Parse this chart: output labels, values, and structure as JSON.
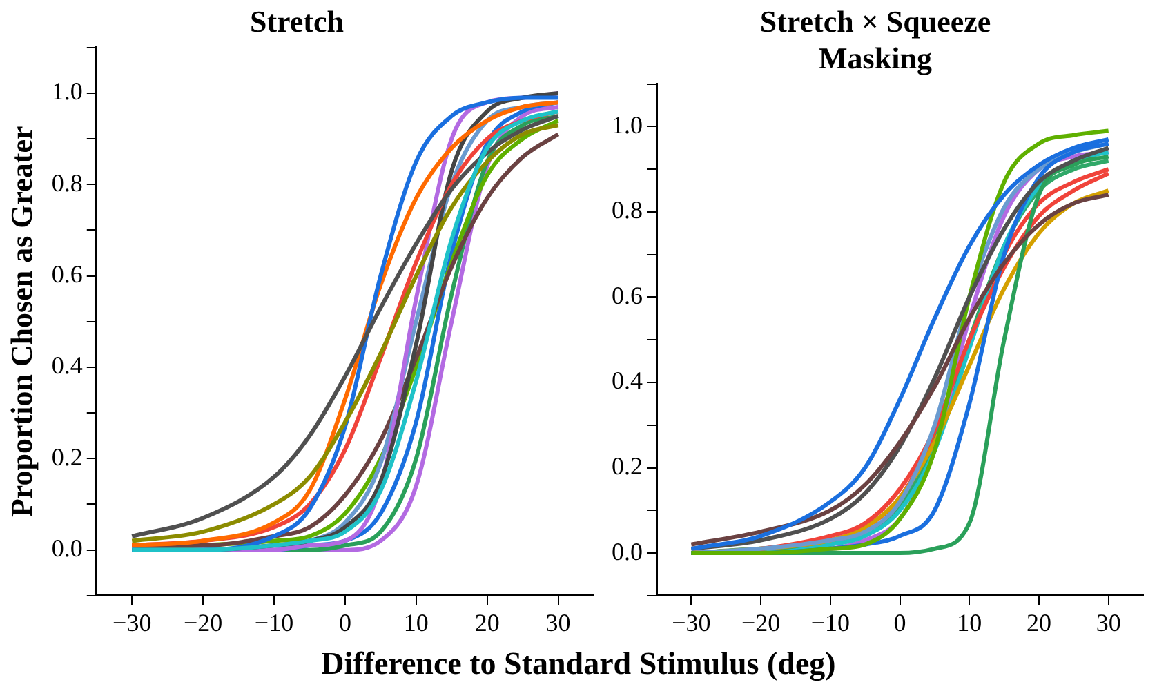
{
  "chart_data": [
    {
      "type": "line",
      "title": "Stretch",
      "xlabel": "Difference to Standard Stimulus (deg)",
      "ylabel": "Proportion Chosen as Greater",
      "x": [
        -30,
        -20,
        -10,
        -5,
        0,
        5,
        10,
        15,
        20,
        25,
        30
      ],
      "xlim": [
        -35,
        35
      ],
      "ylim": [
        -0.1,
        1.1
      ],
      "xticks": [
        {
          "value": -30,
          "label": "−30"
        },
        {
          "value": -20,
          "label": "−20"
        },
        {
          "value": -10,
          "label": "−10"
        },
        0,
        10,
        20,
        30
      ],
      "yticks": [
        {
          "value": -0.1,
          "label": null
        },
        {
          "value": 0,
          "label": "0.0"
        },
        {
          "value": 0.1,
          "label": null
        },
        {
          "value": 0.2,
          "label": "0.2"
        },
        {
          "value": 0.3,
          "label": null
        },
        {
          "value": 0.4,
          "label": "0.4"
        },
        {
          "value": 0.5,
          "label": null
        },
        {
          "value": 0.6,
          "label": "0.6"
        },
        {
          "value": 0.7,
          "label": null
        },
        {
          "value": 0.8,
          "label": "0.8"
        },
        {
          "value": 0.9,
          "label": null
        },
        {
          "value": 1.0,
          "label": "1.0"
        },
        {
          "value": 1.1,
          "label": null
        }
      ],
      "grid": false,
      "legend": false,
      "marker": "none",
      "line_style": "solid",
      "series": [
        {
          "color": "#1fc2c8",
          "values": [
            0,
            0,
            0.01,
            0.02,
            0.04,
            0.13,
            0.37,
            0.68,
            0.88,
            0.94,
            0.96
          ]
        },
        {
          "color": "#505050",
          "values": [
            0.03,
            0.07,
            0.16,
            0.25,
            0.38,
            0.53,
            0.67,
            0.79,
            0.87,
            0.92,
            0.95
          ]
        },
        {
          "color": "#8c8c00",
          "values": [
            0.02,
            0.04,
            0.1,
            0.16,
            0.28,
            0.43,
            0.6,
            0.75,
            0.85,
            0.91,
            0.93
          ]
        },
        {
          "color": "#1a6fdf",
          "values": [
            0,
            0,
            0.03,
            0.09,
            0.27,
            0.6,
            0.85,
            0.95,
            0.98,
            0.99,
            0.99
          ]
        },
        {
          "color": "#ff6a00",
          "values": [
            0.01,
            0.02,
            0.06,
            0.13,
            0.33,
            0.58,
            0.77,
            0.88,
            0.94,
            0.97,
            0.98
          ]
        },
        {
          "color": "#f0433a",
          "values": [
            0.01,
            0.02,
            0.05,
            0.1,
            0.22,
            0.42,
            0.63,
            0.8,
            0.9,
            0.94,
            0.96
          ]
        },
        {
          "color": "#454545",
          "values": [
            0,
            0,
            0.01,
            0.02,
            0.05,
            0.15,
            0.45,
            0.83,
            0.96,
            0.99,
            1.0
          ]
        },
        {
          "color": "#b36ae2",
          "values": [
            0,
            0,
            0,
            0.01,
            0.02,
            0.14,
            0.55,
            0.9,
            0.98,
            0.99,
            1.0
          ]
        },
        {
          "color": "#6a9bd0",
          "values": [
            0,
            0,
            0.01,
            0.02,
            0.06,
            0.19,
            0.5,
            0.8,
            0.94,
            0.97,
            0.98
          ]
        },
        {
          "color": "#6b4242",
          "values": [
            0.01,
            0.01,
            0.03,
            0.05,
            0.12,
            0.24,
            0.42,
            0.62,
            0.77,
            0.86,
            0.91
          ]
        },
        {
          "color": "#5fb000",
          "values": [
            0,
            0.01,
            0.02,
            0.03,
            0.08,
            0.2,
            0.4,
            0.63,
            0.82,
            0.9,
            0.94
          ]
        },
        {
          "color": "#1a6fdf",
          "values": [
            0,
            0,
            0,
            0.01,
            0.02,
            0.08,
            0.28,
            0.65,
            0.89,
            0.96,
            0.98
          ]
        },
        {
          "color": "#2aa05a",
          "values": [
            0,
            0,
            0,
            0,
            0.01,
            0.04,
            0.2,
            0.56,
            0.85,
            0.93,
            0.95
          ]
        },
        {
          "color": "#b36ae2",
          "values": [
            0,
            0,
            0,
            0,
            0,
            0.02,
            0.14,
            0.5,
            0.84,
            0.95,
            0.97
          ]
        }
      ]
    },
    {
      "type": "line",
      "title": "Stretch × Squeeze Masking",
      "x": [
        -30,
        -20,
        -10,
        -5,
        0,
        5,
        10,
        15,
        20,
        25,
        30
      ],
      "xlim": [
        -35,
        35
      ],
      "ylim": [
        -0.1,
        1.1
      ],
      "xticks": [
        {
          "value": -30,
          "label": "−30"
        },
        {
          "value": -20,
          "label": "−20"
        },
        {
          "value": -10,
          "label": "−10"
        },
        0,
        10,
        20,
        30
      ],
      "yticks": [
        {
          "value": -0.1,
          "label": null
        },
        {
          "value": 0,
          "label": "0.0"
        },
        {
          "value": 0.1,
          "label": null
        },
        {
          "value": 0.2,
          "label": "0.2"
        },
        {
          "value": 0.3,
          "label": null
        },
        {
          "value": 0.4,
          "label": "0.4"
        },
        {
          "value": 0.5,
          "label": null
        },
        {
          "value": 0.6,
          "label": "0.6"
        },
        {
          "value": 0.7,
          "label": null
        },
        {
          "value": 0.8,
          "label": "0.8"
        },
        {
          "value": 0.9,
          "label": null
        },
        {
          "value": 1.0,
          "label": "1.0"
        },
        {
          "value": 1.1,
          "label": null
        }
      ],
      "grid": false,
      "legend": false,
      "marker": "none",
      "line_style": "solid",
      "series": [
        {
          "color": "#1a6fdf",
          "values": [
            0.01,
            0.04,
            0.12,
            0.2,
            0.36,
            0.55,
            0.72,
            0.84,
            0.91,
            0.95,
            0.97
          ]
        },
        {
          "color": "#6b4242",
          "values": [
            0.02,
            0.05,
            0.1,
            0.16,
            0.26,
            0.39,
            0.55,
            0.68,
            0.77,
            0.82,
            0.84
          ]
        },
        {
          "color": "#505050",
          "values": [
            0.01,
            0.03,
            0.08,
            0.14,
            0.25,
            0.41,
            0.6,
            0.76,
            0.87,
            0.92,
            0.95
          ]
        },
        {
          "color": "#5fb000",
          "values": [
            0,
            0,
            0.01,
            0.02,
            0.08,
            0.24,
            0.6,
            0.87,
            0.96,
            0.98,
            0.99
          ]
        },
        {
          "color": "#2aa05a",
          "values": [
            0,
            0,
            0,
            0,
            0,
            0.01,
            0.07,
            0.5,
            0.84,
            0.91,
            0.93
          ]
        },
        {
          "color": "#1a6fdf",
          "values": [
            0,
            0,
            0.01,
            0.02,
            0.04,
            0.1,
            0.35,
            0.7,
            0.88,
            0.94,
            0.96
          ]
        },
        {
          "color": "#6a9bd0",
          "values": [
            0,
            0.01,
            0.03,
            0.05,
            0.12,
            0.3,
            0.6,
            0.81,
            0.9,
            0.94,
            0.96
          ]
        },
        {
          "color": "#f0433a",
          "values": [
            0,
            0.01,
            0.04,
            0.07,
            0.15,
            0.29,
            0.5,
            0.67,
            0.79,
            0.85,
            0.89
          ]
        },
        {
          "color": "#d4a000",
          "values": [
            0,
            0.01,
            0.03,
            0.06,
            0.13,
            0.26,
            0.44,
            0.62,
            0.75,
            0.82,
            0.85
          ]
        },
        {
          "color": "#1fc2c8",
          "values": [
            0,
            0,
            0.02,
            0.04,
            0.1,
            0.24,
            0.48,
            0.72,
            0.86,
            0.92,
            0.94
          ]
        },
        {
          "color": "#b36ae2",
          "values": [
            0,
            0,
            0.01,
            0.03,
            0.08,
            0.24,
            0.55,
            0.79,
            0.9,
            0.93,
            0.94
          ]
        },
        {
          "color": "#30a868",
          "values": [
            0,
            0.01,
            0.02,
            0.05,
            0.11,
            0.26,
            0.5,
            0.72,
            0.85,
            0.9,
            0.92
          ]
        },
        {
          "color": "#f0433a",
          "values": [
            0,
            0.01,
            0.03,
            0.06,
            0.13,
            0.28,
            0.5,
            0.7,
            0.82,
            0.87,
            0.9
          ]
        }
      ]
    }
  ]
}
